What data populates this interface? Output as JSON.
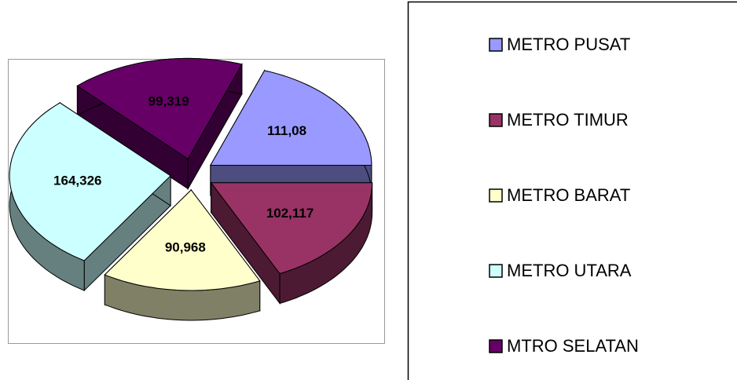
{
  "chart_data": {
    "type": "pie",
    "categories": [
      "METRO PUSAT",
      "METRO TIMUR",
      "METRO BARAT",
      "METRO UTARA",
      "MTRO SELATAN"
    ],
    "values": [
      111.08,
      102.117,
      90.968,
      164.326,
      99.319
    ],
    "value_labels": [
      "111,08",
      "102,117",
      "90,968",
      "164,326",
      "99,319"
    ],
    "colors": [
      "#9999ff",
      "#993366",
      "#ffffcc",
      "#ccffff",
      "#660066"
    ],
    "legend": "right"
  }
}
